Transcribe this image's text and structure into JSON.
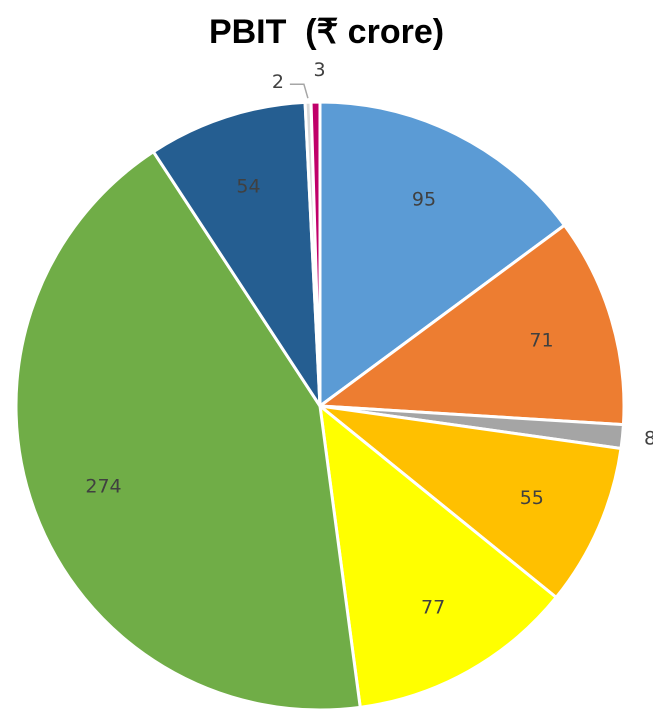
{
  "chart_data": {
    "type": "pie",
    "title": "PBIT  (₹ crore)",
    "start_angle_deg": 0,
    "direction": "clockwise",
    "legend": "none",
    "slices": [
      {
        "value": 95,
        "label": "95",
        "color": "#5B9BD5"
      },
      {
        "value": 71,
        "label": "71",
        "color": "#ED7D31"
      },
      {
        "value": 8,
        "label": "8",
        "color": "#A5A5A5"
      },
      {
        "value": 55,
        "label": "55",
        "color": "#FFC000"
      },
      {
        "value": 77,
        "label": "77",
        "color": "#FFFF00"
      },
      {
        "value": 274,
        "label": "274",
        "color": "#70AD47"
      },
      {
        "value": 54,
        "label": "54",
        "color": "#255E91"
      },
      {
        "value": 2,
        "label": "2",
        "color": "#D9D9D9"
      },
      {
        "value": 3,
        "label": "3",
        "color": "#C0006A"
      }
    ]
  }
}
